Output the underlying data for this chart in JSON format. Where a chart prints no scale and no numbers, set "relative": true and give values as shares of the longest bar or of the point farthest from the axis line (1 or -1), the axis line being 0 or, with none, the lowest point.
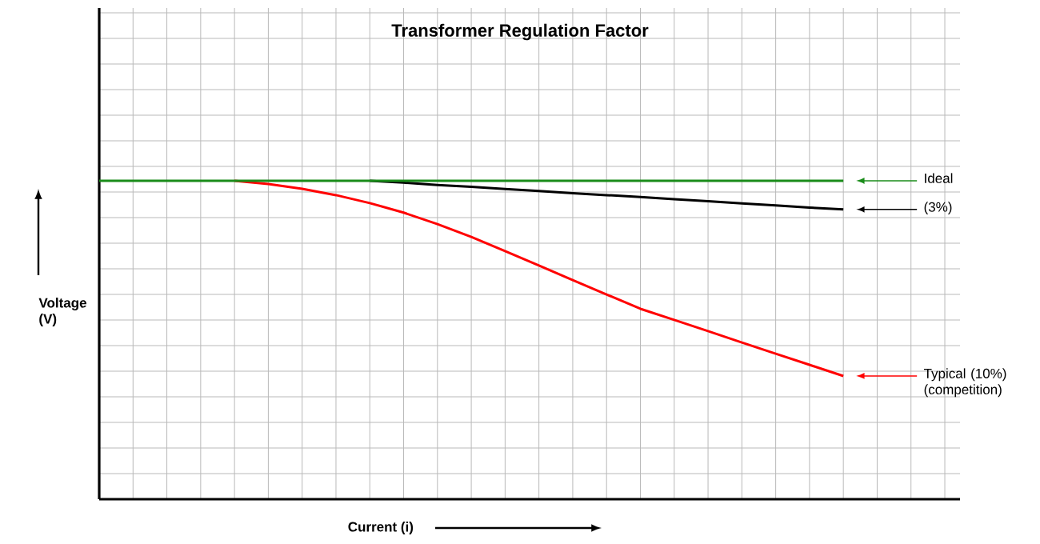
{
  "chart_data": {
    "type": "line",
    "title": "Transformer Regulation Factor",
    "xlabel": "Current (i)",
    "ylabel": "Voltage (V)",
    "relative": true,
    "grid": true,
    "legend": "right",
    "categories": [
      null,
      null,
      null,
      null,
      null,
      null,
      null,
      null,
      null,
      null,
      null,
      null,
      null,
      null,
      null,
      null,
      null,
      null,
      null,
      null,
      null,
      null,
      null
    ],
    "series": [
      {
        "name": "Typical (10%) (competition)",
        "color": "#ff0000",
        "values": [
          null,
          null,
          null,
          null,
          1,
          0.99,
          0.975,
          0.955,
          0.93,
          0.9,
          0.864,
          0.824,
          0.779,
          0.734,
          0.688,
          0.643,
          0.598,
          0.563,
          0.528,
          0.492,
          0.457,
          0.422,
          0.387
        ]
      },
      {
        "name": "(3%)",
        "color": "#000000",
        "values": [
          null,
          null,
          null,
          null,
          null,
          null,
          null,
          null,
          1,
          0.994,
          0.987,
          0.981,
          0.974,
          0.968,
          0.961,
          0.955,
          0.949,
          0.942,
          0.936,
          0.929,
          0.923,
          0.916,
          0.91
        ]
      },
      {
        "name": "Ideal",
        "color": "#1a8c1a",
        "values": [
          1,
          1,
          1,
          1,
          1,
          1,
          1,
          1,
          1,
          1,
          1,
          1,
          1,
          1,
          1,
          1,
          1,
          1,
          1,
          1,
          1,
          1,
          1
        ]
      }
    ]
  }
}
